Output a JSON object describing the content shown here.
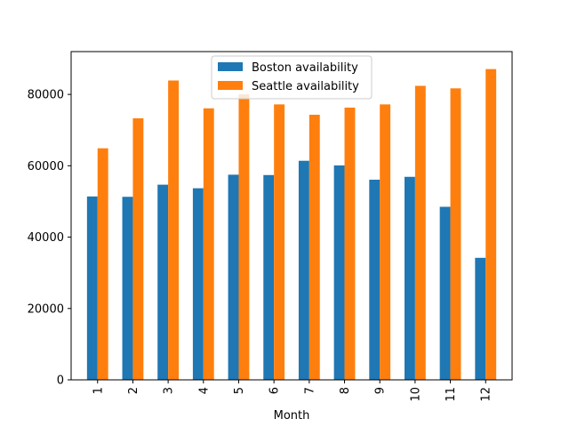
{
  "chart_data": {
    "type": "bar",
    "title": "",
    "xlabel": "Month",
    "ylabel": "",
    "categories": [
      "1",
      "2",
      "3",
      "4",
      "5",
      "6",
      "7",
      "8",
      "9",
      "10",
      "11",
      "12"
    ],
    "ylim": [
      0,
      92000
    ],
    "yticks": [
      0,
      20000,
      40000,
      60000,
      80000
    ],
    "ytick_labels": [
      "0",
      "20000",
      "40000",
      "60000",
      "80000"
    ],
    "legend_position": "upper-center",
    "grid": false,
    "series": [
      {
        "name": "Boston availability",
        "color": "#1f77b4",
        "values": [
          51400,
          51300,
          54700,
          53700,
          57500,
          57400,
          61400,
          60100,
          56100,
          56900,
          48500,
          34200
        ]
      },
      {
        "name": "Seattle availability",
        "color": "#ff7f0e",
        "values": [
          64900,
          73300,
          83900,
          76100,
          80000,
          77200,
          74300,
          76300,
          77200,
          82400,
          81700,
          87100
        ]
      }
    ]
  }
}
